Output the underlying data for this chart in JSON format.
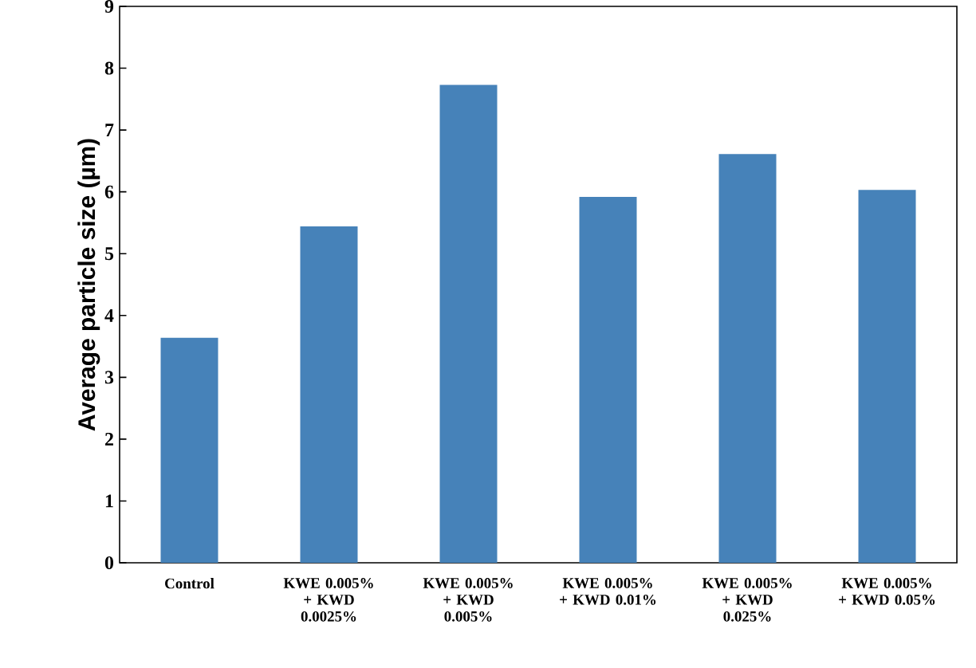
{
  "chart_data": {
    "type": "bar",
    "ylabel": "Average particle size (µm)",
    "categories": [
      "Control",
      "KWE 0.005% + KWD 0.0025%",
      "KWE 0.005% + KWD 0.005%",
      "KWE 0.005% + KWD 0.01%",
      "KWE 0.005% + KWD 0.025%",
      "KWE 0.005% + KWD 0.05%"
    ],
    "values": [
      3.64,
      5.44,
      7.73,
      5.92,
      6.61,
      6.03
    ],
    "color": "#4682b9",
    "ylim": [
      0,
      9
    ],
    "yticks": [
      0,
      1,
      2,
      3,
      4,
      5,
      6,
      7,
      8,
      9
    ]
  }
}
